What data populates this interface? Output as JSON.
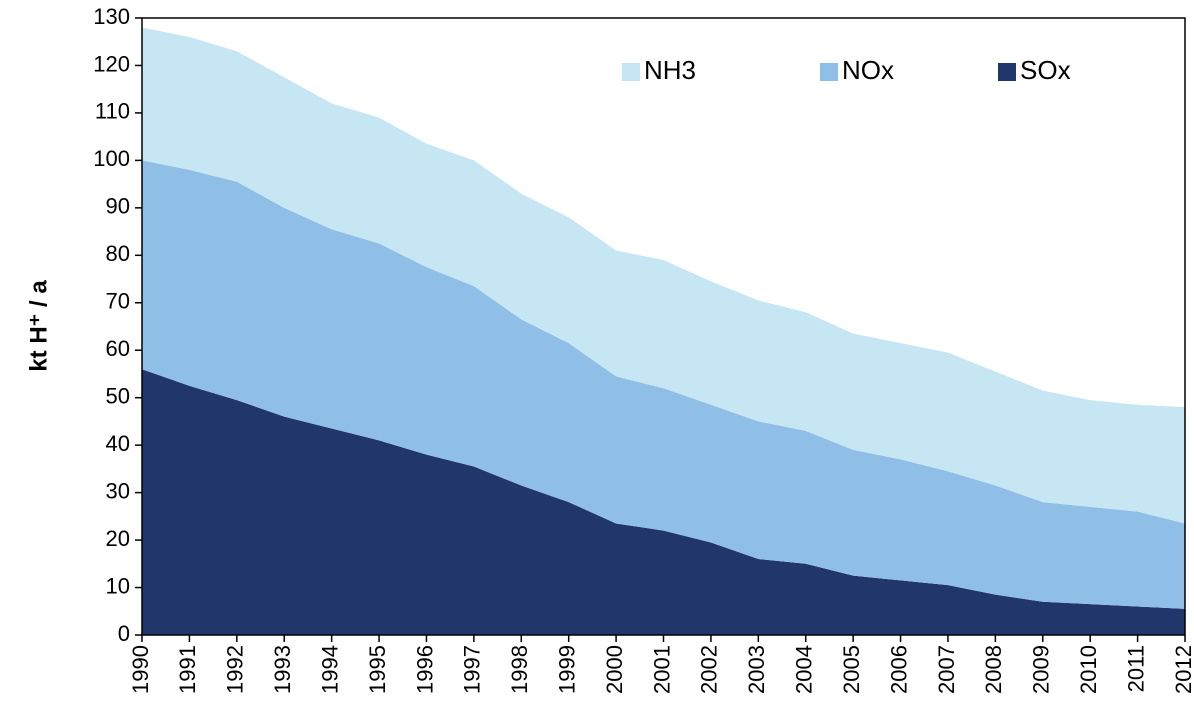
{
  "chart_data": {
    "type": "stacked_area",
    "y_label": "kt H⁺ / a",
    "categories": [
      "1990",
      "1991",
      "1992",
      "1993",
      "1994",
      "1995",
      "1996",
      "1997",
      "1998",
      "1999",
      "2000",
      "2001",
      "2002",
      "2003",
      "2004",
      "2005",
      "2006",
      "2007",
      "2008",
      "2009",
      "2010",
      "2011",
      "2012"
    ],
    "series": [
      {
        "name": "SOx",
        "color": "#21366b",
        "values": [
          56,
          52.5,
          49.5,
          46,
          43.5,
          41,
          38,
          35.5,
          31.5,
          28,
          23.5,
          22,
          19.5,
          16,
          15,
          12.5,
          11.5,
          10.5,
          8.5,
          7,
          6.5,
          6,
          5.5
        ]
      },
      {
        "name": "NOx",
        "color": "#8fbfe6",
        "values": [
          44,
          45.5,
          46,
          44,
          42,
          41.5,
          39.5,
          38,
          35,
          33.5,
          31,
          30,
          29,
          29,
          28,
          26.5,
          25.5,
          24,
          23,
          21,
          20.5,
          20,
          18
        ]
      },
      {
        "name": "NH3",
        "color": "#c5e6f2",
        "values": [
          28,
          28,
          27.5,
          27.5,
          26.5,
          26.5,
          26,
          26.5,
          26.5,
          26.5,
          26.5,
          27,
          26,
          25.5,
          25,
          24.5,
          24.5,
          25,
          24,
          23.5,
          22.5,
          22.5,
          24.5
        ]
      }
    ],
    "ylim": [
      0,
      130
    ],
    "yticks": [
      0,
      10,
      20,
      30,
      40,
      50,
      60,
      70,
      80,
      90,
      100,
      110,
      120,
      130
    ],
    "legend": "top-right",
    "grid": false
  }
}
